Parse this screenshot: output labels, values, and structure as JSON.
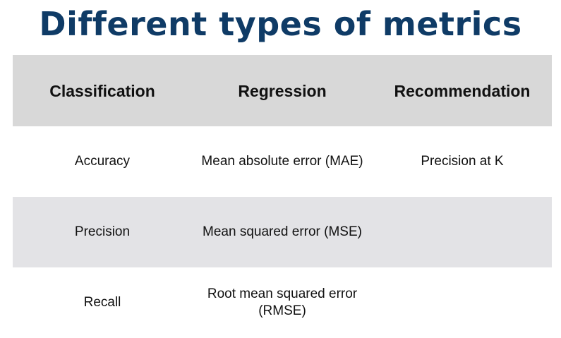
{
  "title": "Different types of metrics",
  "table": {
    "headers": [
      "Classification",
      "Regression",
      "Recommendation"
    ],
    "rows": [
      [
        "Accuracy",
        "Mean absolute error (MAE)",
        "Precision at K"
      ],
      [
        "Precision",
        "Mean squared error (MSE)",
        ""
      ],
      [
        "Recall",
        "Root mean squared error (RMSE)",
        ""
      ]
    ]
  },
  "colors": {
    "title": "#0f3b66",
    "header_background": "#d8d8d8",
    "shaded_row_background": "#e3e3e6",
    "text": "#111111"
  }
}
